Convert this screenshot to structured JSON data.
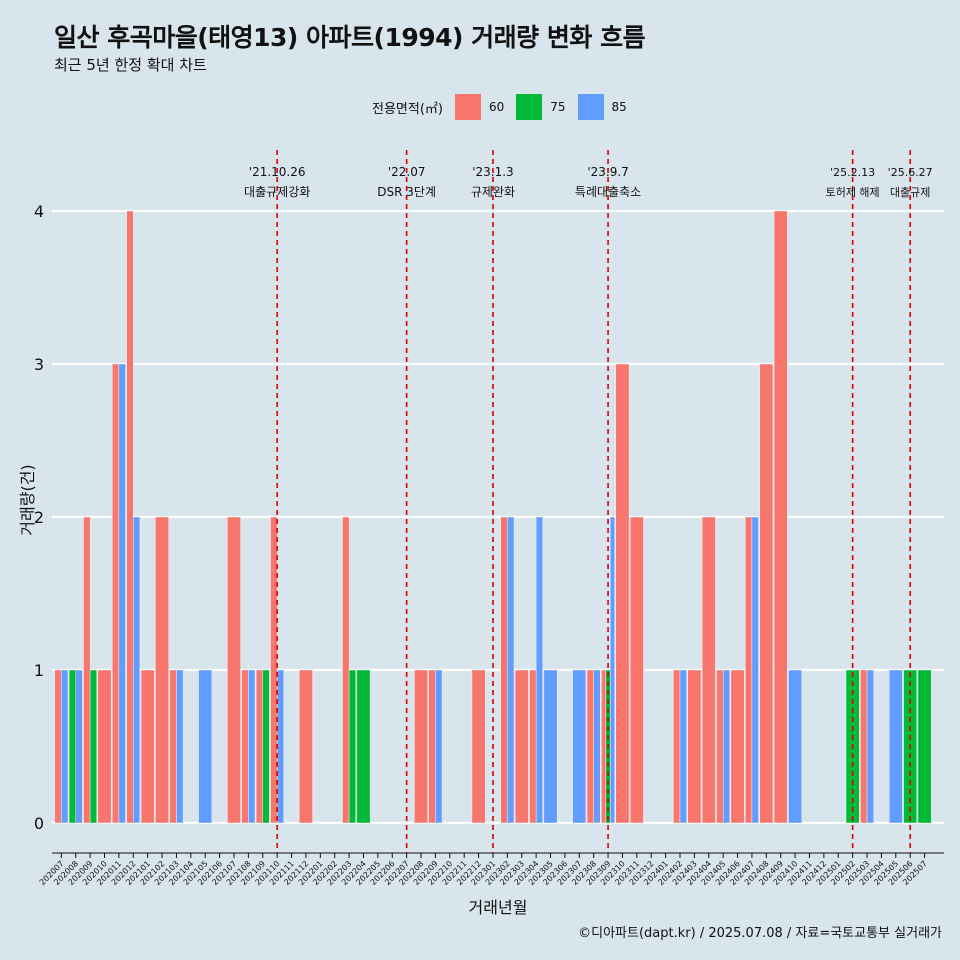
{
  "title": "일산 후곡마을(태영13) 아파트(1994) 거래량 변화 흐름",
  "subtitle": "최근 5년 한정 확대 차트",
  "caption": "©디아파트(dapt.kr) / 2025.07.08 / 자료=국토교통부 실거래가",
  "legend": {
    "title": "전용면적(㎡)",
    "items": [
      {
        "label": "60",
        "color": "#F8766D"
      },
      {
        "label": "75",
        "color": "#00BA38"
      },
      {
        "label": "85",
        "color": "#619CFF"
      }
    ]
  },
  "chart_data": {
    "type": "bar",
    "xlabel": "거래년월",
    "ylabel": "거래량(건)",
    "ylim": [
      0,
      4
    ],
    "yticks": [
      "0",
      "1",
      "2",
      "3",
      "4"
    ],
    "categories": [
      "202007",
      "202008",
      "202009",
      "202010",
      "202011",
      "202012",
      "202101",
      "202102",
      "202103",
      "202104",
      "202105",
      "202106",
      "202107",
      "202108",
      "202109",
      "202110",
      "202111",
      "202112",
      "202201",
      "202202",
      "202203",
      "202204",
      "202205",
      "202206",
      "202207",
      "202208",
      "202209",
      "202210",
      "202211",
      "202212",
      "202301",
      "202302",
      "202303",
      "202304",
      "202305",
      "202306",
      "202307",
      "202308",
      "202309",
      "202310",
      "202311",
      "202312",
      "202401",
      "202402",
      "202403",
      "202404",
      "202405",
      "202406",
      "202407",
      "202408",
      "202409",
      "202410",
      "202411",
      "202412",
      "202501",
      "202502",
      "202503",
      "202504",
      "202505",
      "202506",
      "202507"
    ],
    "series": [
      {
        "name": "60",
        "color": "#F8766D",
        "values": [
          1,
          0,
          2,
          1,
          3,
          4,
          1,
          2,
          1,
          0,
          0,
          0,
          2,
          1,
          1,
          2,
          0,
          1,
          0,
          0,
          2,
          0,
          0,
          0,
          0,
          1,
          1,
          0,
          0,
          1,
          0,
          2,
          1,
          1,
          0,
          0,
          0,
          1,
          1,
          3,
          2,
          0,
          0,
          1,
          1,
          2,
          1,
          1,
          2,
          3,
          4,
          0,
          0,
          0,
          0,
          0,
          1,
          0,
          0,
          0,
          0
        ]
      },
      {
        "name": "75",
        "color": "#00BA38",
        "values": [
          0,
          1,
          1,
          0,
          0,
          0,
          0,
          0,
          0,
          0,
          0,
          0,
          0,
          0,
          1,
          0,
          0,
          0,
          0,
          0,
          1,
          1,
          0,
          0,
          0,
          0,
          0,
          0,
          0,
          0,
          0,
          0,
          0,
          0,
          0,
          0,
          0,
          0,
          1,
          0,
          0,
          0,
          0,
          0,
          0,
          0,
          0,
          0,
          0,
          0,
          0,
          0,
          0,
          0,
          0,
          1,
          0,
          0,
          0,
          1,
          1
        ]
      },
      {
        "name": "85",
        "color": "#619CFF",
        "values": [
          1,
          1,
          0,
          0,
          3,
          2,
          0,
          0,
          1,
          0,
          1,
          0,
          0,
          1,
          0,
          1,
          0,
          0,
          0,
          0,
          0,
          0,
          0,
          0,
          0,
          0,
          1,
          0,
          0,
          0,
          0,
          2,
          0,
          2,
          1,
          0,
          1,
          1,
          2,
          0,
          0,
          0,
          0,
          1,
          0,
          0,
          1,
          0,
          2,
          0,
          0,
          1,
          0,
          0,
          0,
          0,
          1,
          0,
          1,
          0,
          0
        ]
      }
    ],
    "events": [
      {
        "at": "202110",
        "date": "'21.10.26",
        "label": "대출규제강화"
      },
      {
        "at": "202207",
        "date": "'22.07",
        "label": "DSR 3단계"
      },
      {
        "at": "202301",
        "date": "'23.1.3",
        "label": "규제완화"
      },
      {
        "at": "202309",
        "date": "'23.9.7",
        "label": "특례대출축소"
      },
      {
        "at": "202502",
        "date": "'25.2.13",
        "label": "토허제 해제"
      },
      {
        "at": "202506",
        "date": "'25.6.27",
        "label": "대출규제"
      }
    ]
  }
}
